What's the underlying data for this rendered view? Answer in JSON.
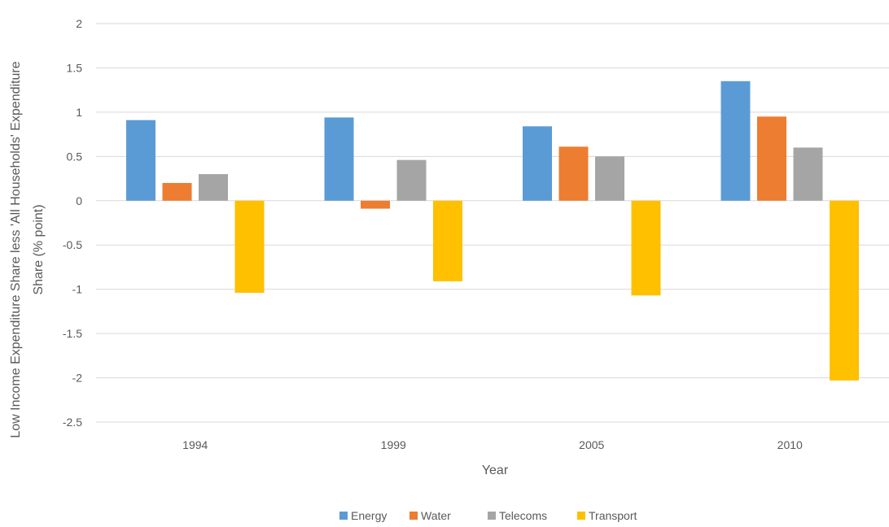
{
  "chart_data": {
    "type": "bar",
    "categories": [
      "1994",
      "1999",
      "2005",
      "2010"
    ],
    "series": [
      {
        "name": "Energy",
        "color": "#5b9bd5",
        "values": [
          0.91,
          0.94,
          0.84,
          1.35
        ]
      },
      {
        "name": "Water",
        "color": "#ed7d31",
        "values": [
          0.2,
          -0.09,
          0.61,
          0.95
        ]
      },
      {
        "name": "Telecoms",
        "color": "#a5a5a5",
        "values": [
          0.3,
          0.46,
          0.5,
          0.6
        ]
      },
      {
        "name": "Transport",
        "color": "#ffc000",
        "values": [
          -1.04,
          -0.91,
          -1.07,
          -2.03
        ]
      }
    ],
    "xlabel": "Year",
    "ylabel": "Low Income Expenditure Share less 'All Households' Expenditure Share (% point)",
    "ylim": [
      -2.5,
      2
    ],
    "yticks": [
      "2",
      "1.5",
      "1",
      "0.5",
      "0",
      "-0.5",
      "-1",
      "-1.5",
      "-2",
      "-2.5"
    ],
    "grid": true,
    "legend_position": "bottom"
  }
}
